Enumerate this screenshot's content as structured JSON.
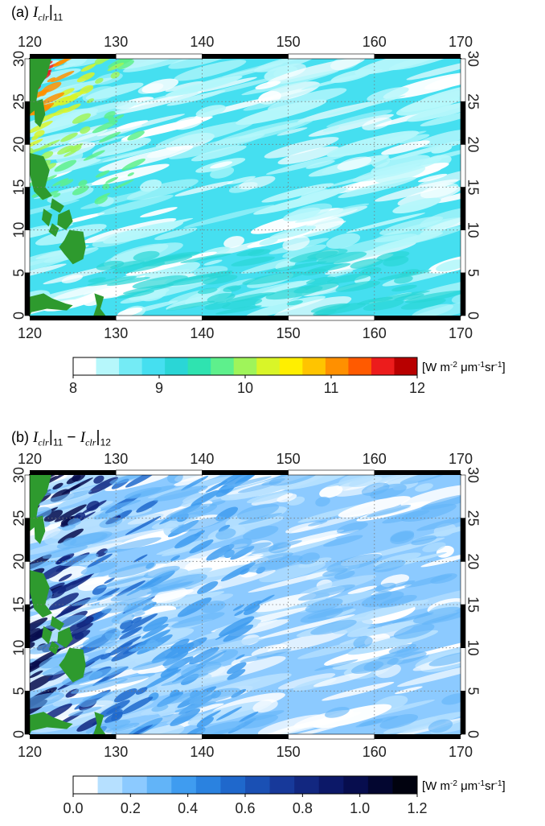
{
  "panels": [
    {
      "id": "a",
      "label_prefix": "(a)",
      "title_var": "I",
      "title_sub_var": "clr",
      "title_suffix": "11",
      "title_tail": "",
      "lon_ticks": [
        "120",
        "130",
        "140",
        "150",
        "160",
        "170"
      ],
      "lat_ticks": [
        "0",
        "5",
        "10",
        "15",
        "20",
        "25",
        "30"
      ],
      "colorbar": {
        "unit_label": "[W m-2 μm-1sr-1]",
        "tick_labels": [
          "8",
          "9",
          "10",
          "11",
          "12"
        ],
        "colors": [
          "#ffffff",
          "#b6f7fb",
          "#74ebf5",
          "#45dff0",
          "#2ad6d6",
          "#2fe3b0",
          "#5ef08c",
          "#9ff45a",
          "#d9f528",
          "#ffef00",
          "#ffc400",
          "#ff9000",
          "#ff5a00",
          "#ec1c1c",
          "#b80000"
        ]
      },
      "map_colors": {
        "background": "#45dff0",
        "light": "#b6f7fb",
        "white": "#ffffff",
        "warm": [
          "#5ef08c",
          "#9ff45a",
          "#d9f528",
          "#ff9000",
          "#ec1c1c"
        ],
        "land": "#2e9a2e"
      }
    },
    {
      "id": "b",
      "label_prefix": "(b)",
      "title_var": "I",
      "title_sub_var": "clr",
      "title_suffix": "11",
      "title_tail": "12",
      "lon_ticks": [
        "120",
        "130",
        "140",
        "150",
        "160",
        "170"
      ],
      "lat_ticks": [
        "0",
        "5",
        "10",
        "15",
        "20",
        "25",
        "30"
      ],
      "colorbar": {
        "unit_label": "[W m-2 μm-1sr-1]",
        "tick_labels": [
          "0.0",
          "0.2",
          "0.4",
          "0.6",
          "0.8",
          "1.0",
          "1.2"
        ],
        "colors": [
          "#ffffff",
          "#b6e0ff",
          "#8ccaff",
          "#62b4f8",
          "#3f9cf0",
          "#2a82e0",
          "#1f68cc",
          "#1a50b4",
          "#17399a",
          "#122780",
          "#0c1868",
          "#070d4e",
          "#030630",
          "#01020f"
        ]
      },
      "map_colors": {
        "background": "#8ccaff",
        "light": "#b6e0ff",
        "white": "#ffffff",
        "dark": [
          "#3f9cf0",
          "#1f68cc",
          "#122780",
          "#070d4e"
        ],
        "land": "#2e9a2e"
      }
    }
  ]
}
